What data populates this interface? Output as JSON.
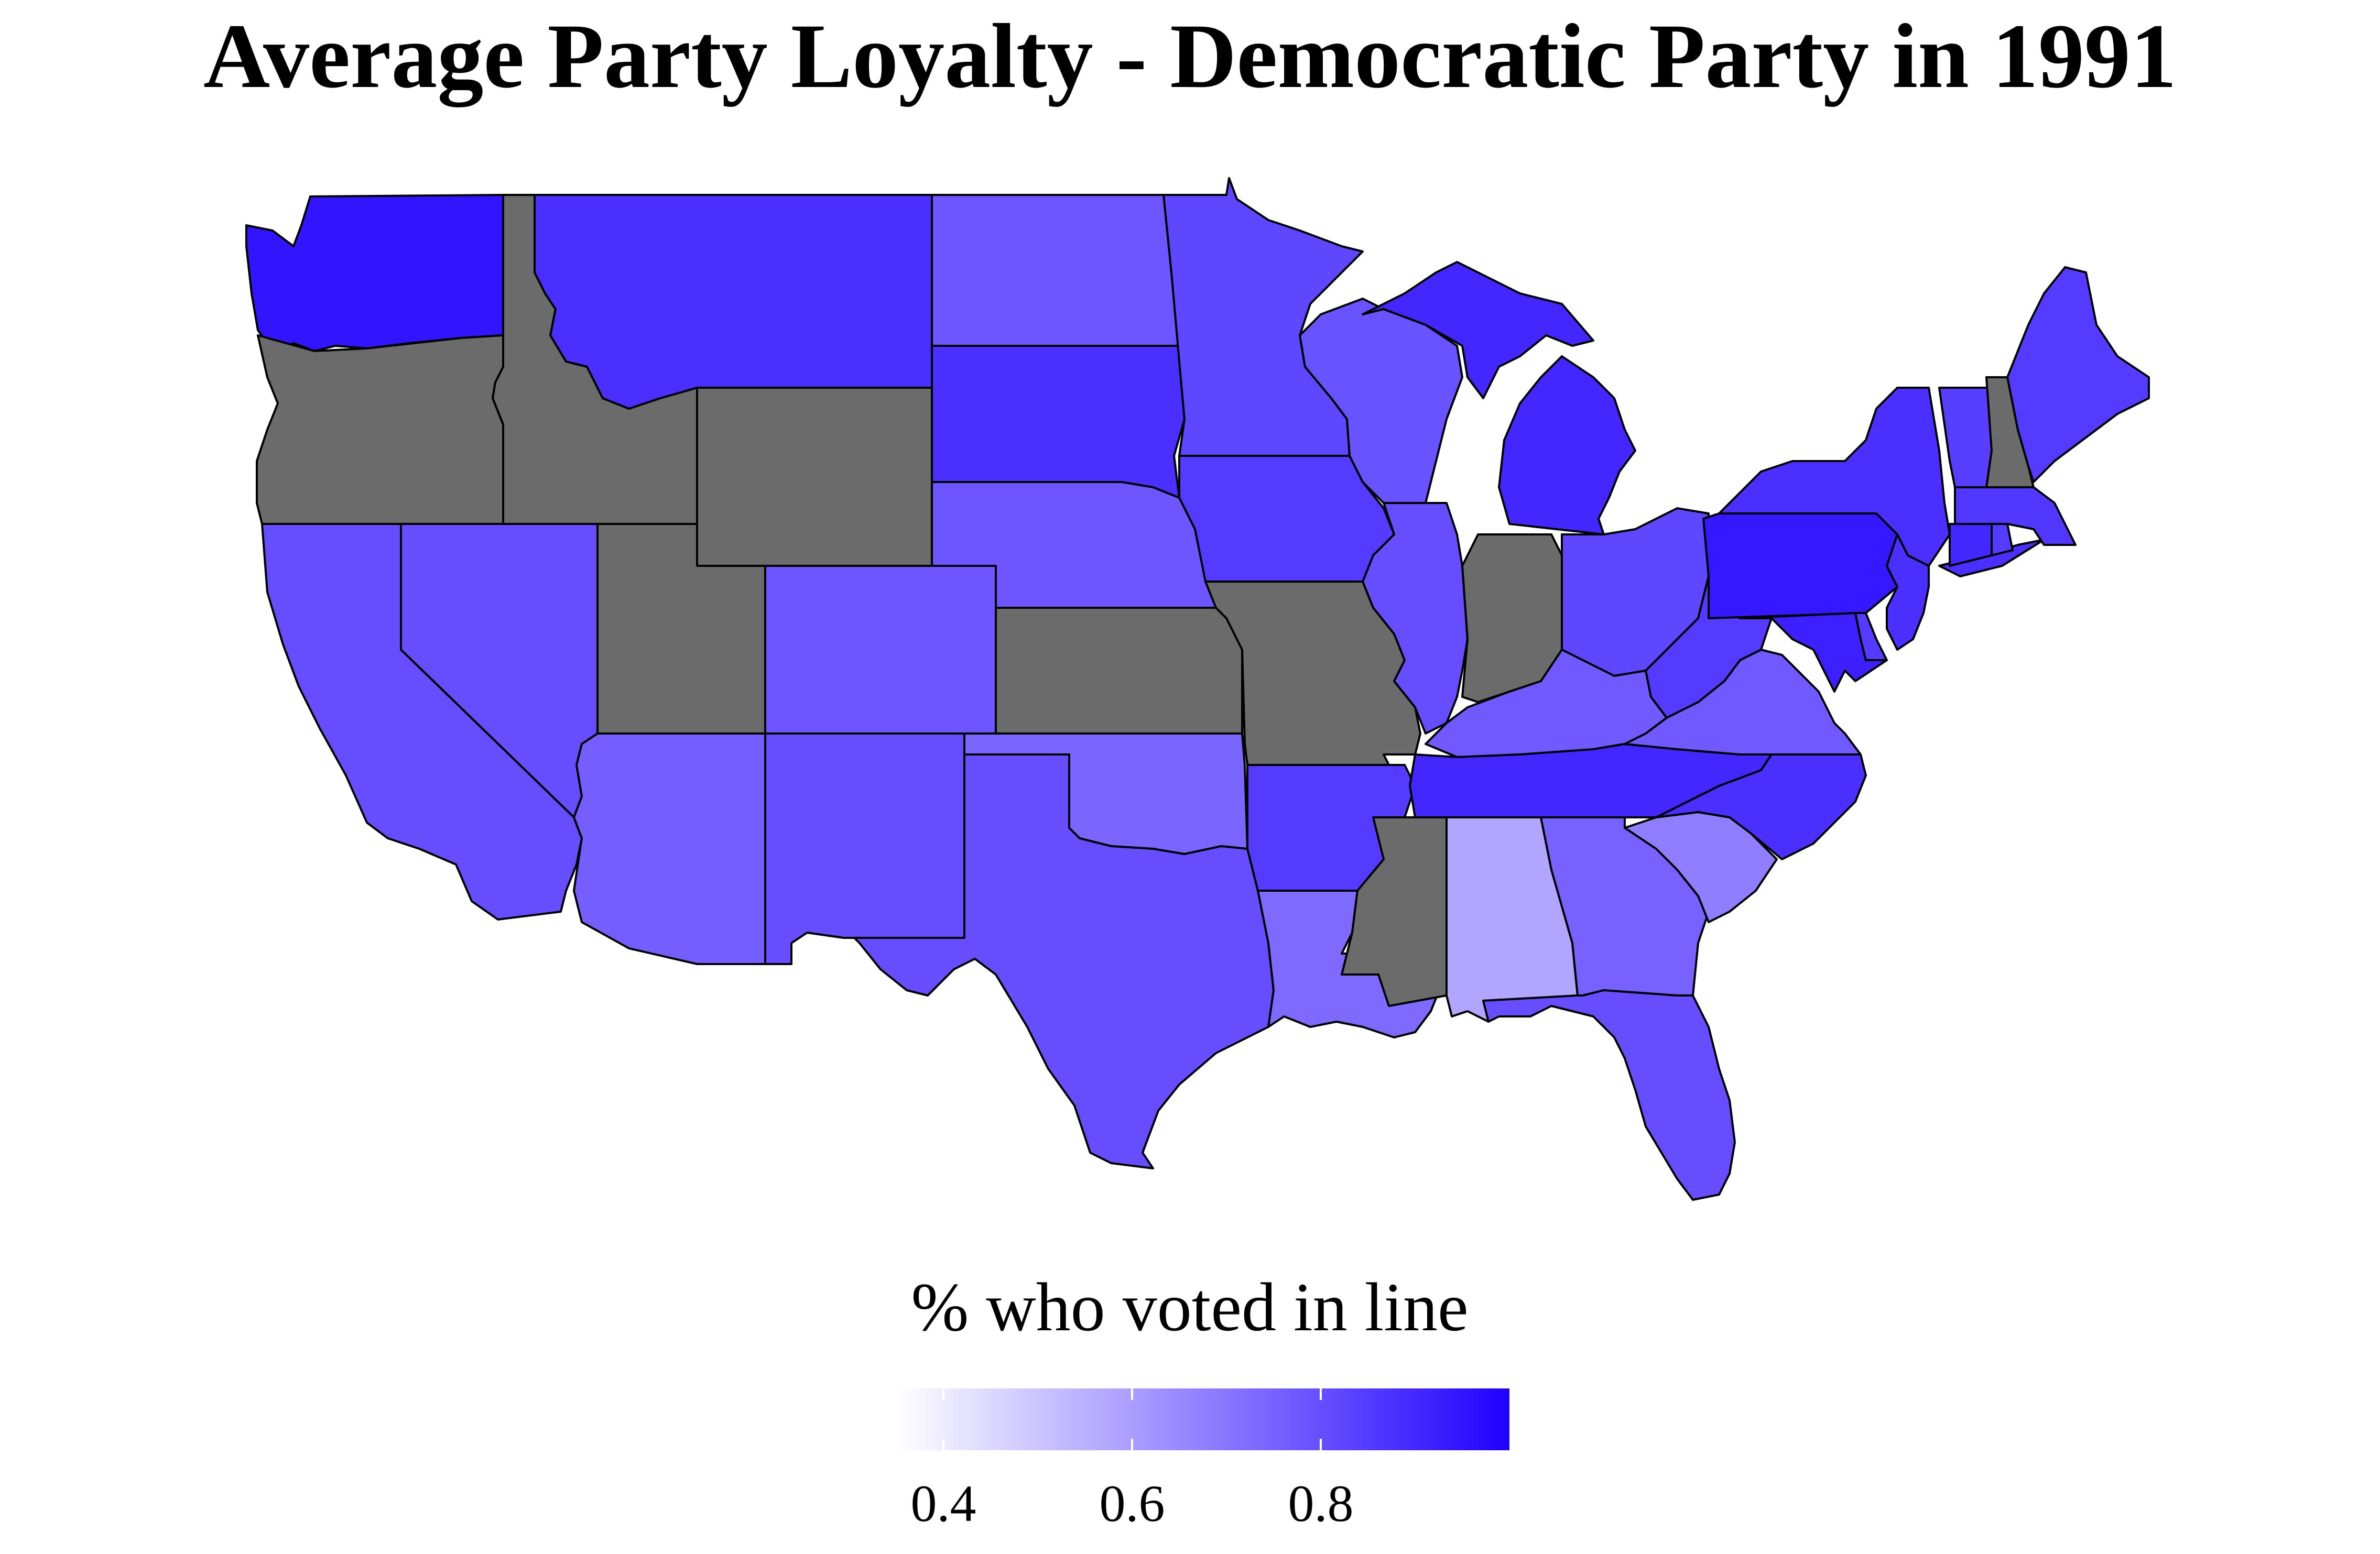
{
  "title": "Average Party Loyalty - Democratic Party in 1991",
  "legend": {
    "title": "% who voted in line",
    "ticks": [
      "0.4",
      "0.6",
      "0.8"
    ],
    "domain": [
      0.35,
      1.0
    ],
    "low_color": "#ffffff",
    "high_color": "#2200ff"
  },
  "colors": {
    "missing": "#6b6b6b",
    "border": "#000000"
  },
  "states": [
    {
      "code": "WA",
      "value": 0.95
    },
    {
      "code": "OR",
      "value": null
    },
    {
      "code": "ID",
      "value": null
    },
    {
      "code": "MT",
      "value": 0.88
    },
    {
      "code": "WY",
      "value": null
    },
    {
      "code": "ND",
      "value": 0.78
    },
    {
      "code": "SD",
      "value": 0.88
    },
    {
      "code": "NE",
      "value": 0.78
    },
    {
      "code": "KS",
      "value": null
    },
    {
      "code": "OK",
      "value": 0.74
    },
    {
      "code": "TX",
      "value": 0.8
    },
    {
      "code": "CO",
      "value": 0.78
    },
    {
      "code": "UT",
      "value": null
    },
    {
      "code": "NV",
      "value": 0.8
    },
    {
      "code": "CA",
      "value": 0.8
    },
    {
      "code": "AZ",
      "value": 0.76
    },
    {
      "code": "NM",
      "value": 0.8
    },
    {
      "code": "MN",
      "value": 0.82
    },
    {
      "code": "IA",
      "value": 0.85
    },
    {
      "code": "MO",
      "value": null
    },
    {
      "code": "AR",
      "value": 0.85
    },
    {
      "code": "LA",
      "value": 0.73
    },
    {
      "code": "WI",
      "value": 0.79
    },
    {
      "code": "IL",
      "value": 0.8
    },
    {
      "code": "MI",
      "value": 0.9
    },
    {
      "code": "IN",
      "value": null
    },
    {
      "code": "OH",
      "value": 0.82
    },
    {
      "code": "KY",
      "value": 0.77
    },
    {
      "code": "TN",
      "value": 0.9
    },
    {
      "code": "MS",
      "value": null
    },
    {
      "code": "AL",
      "value": 0.58
    },
    {
      "code": "GA",
      "value": 0.75
    },
    {
      "code": "FL",
      "value": 0.8
    },
    {
      "code": "SC",
      "value": 0.68
    },
    {
      "code": "NC",
      "value": 0.88
    },
    {
      "code": "VA",
      "value": 0.77
    },
    {
      "code": "WV",
      "value": 0.85
    },
    {
      "code": "PA",
      "value": 0.94
    },
    {
      "code": "NY",
      "value": 0.88
    },
    {
      "code": "VT",
      "value": 0.84
    },
    {
      "code": "NH",
      "value": null
    },
    {
      "code": "ME",
      "value": 0.85
    },
    {
      "code": "MA",
      "value": 0.86
    },
    {
      "code": "CT",
      "value": 0.9
    },
    {
      "code": "RI",
      "value": 0.85
    },
    {
      "code": "NJ",
      "value": 0.88
    },
    {
      "code": "DE",
      "value": 0.85
    },
    {
      "code": "MD",
      "value": 0.92
    }
  ]
}
